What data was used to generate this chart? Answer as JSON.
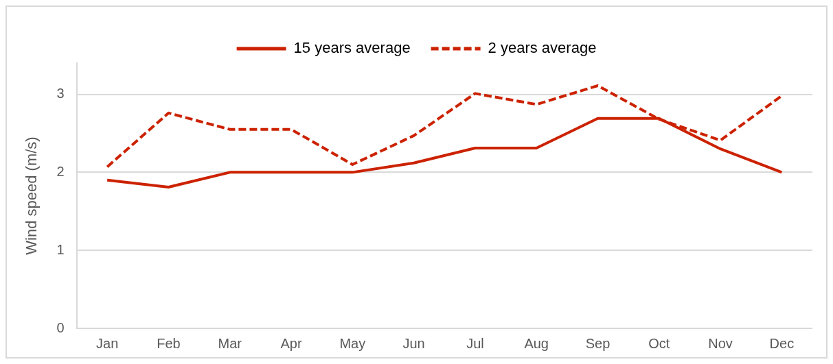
{
  "chart_data": {
    "type": "line",
    "ylabel": "Wind speed (m/s)",
    "categories": [
      "Jan",
      "Feb",
      "Mar",
      "Apr",
      "May",
      "Jun",
      "Jul",
      "Aug",
      "Sep",
      "Oct",
      "Nov",
      "Dec"
    ],
    "series": [
      {
        "name": "15 years average",
        "color": "#cc2200",
        "line_style": "solid",
        "values": [
          1.9,
          1.81,
          2.0,
          2.0,
          2.0,
          2.12,
          2.31,
          2.31,
          2.69,
          2.69,
          2.3,
          2.0
        ]
      },
      {
        "name": "2 years average",
        "color": "#cc2200",
        "line_style": "dashed",
        "values": [
          2.07,
          2.76,
          2.55,
          2.55,
          2.1,
          2.47,
          3.01,
          2.87,
          3.11,
          2.68,
          2.41,
          2.98
        ]
      }
    ],
    "ylim": [
      0,
      3.4
    ],
    "yticks": [
      0,
      1,
      2,
      3
    ],
    "grid": "y",
    "legend": "top",
    "marker": "none"
  }
}
